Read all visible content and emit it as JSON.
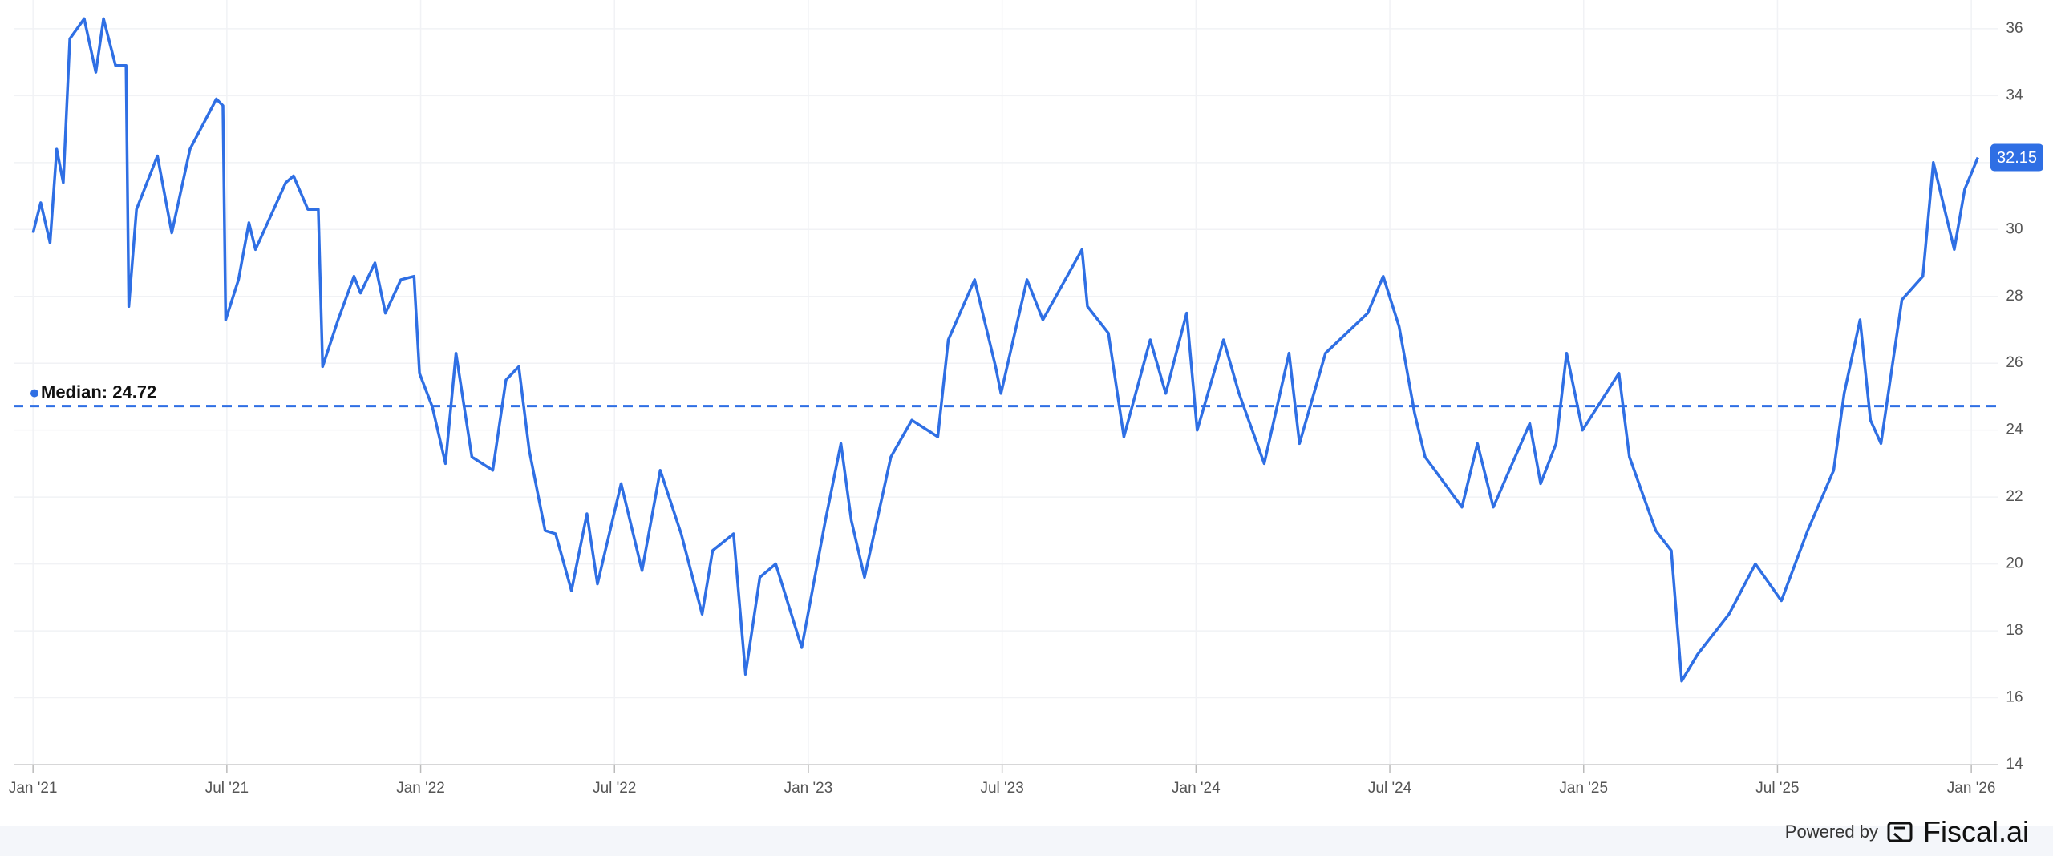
{
  "chart_data": {
    "type": "line",
    "x": [
      2021.0,
      2021.02,
      2021.044,
      2021.061,
      2021.078,
      2021.095,
      2021.132,
      2021.162,
      2021.182,
      2021.213,
      2021.24,
      2021.247,
      2021.267,
      2021.321,
      2021.358,
      2021.405,
      2021.473,
      2021.49,
      2021.497,
      2021.53,
      2021.557,
      2021.574,
      2021.652,
      2021.672,
      2021.709,
      2021.736,
      2021.747,
      2021.787,
      2021.828,
      2021.845,
      2021.882,
      2021.909,
      2021.949,
      2021.983,
      2021.997,
      2022.03,
      2022.064,
      2022.091,
      2022.132,
      2022.186,
      2022.22,
      2022.253,
      2022.28,
      2022.321,
      2022.348,
      2022.389,
      2022.429,
      2022.456,
      2022.517,
      2022.571,
      2022.618,
      2022.672,
      2022.726,
      2022.753,
      2022.807,
      2022.838,
      2022.875,
      2022.916,
      2022.983,
      2023.044,
      2023.084,
      2023.111,
      2023.145,
      2023.213,
      2023.267,
      2023.334,
      2023.361,
      2023.429,
      2023.483,
      2023.497,
      2023.564,
      2023.605,
      2023.706,
      2023.72,
      2023.774,
      2023.814,
      2023.882,
      2023.922,
      2023.976,
      2024.003,
      2024.071,
      2024.111,
      2024.176,
      2024.24,
      2024.267,
      2024.334,
      2024.443,
      2024.483,
      2024.524,
      2024.564,
      2024.591,
      2024.686,
      2024.726,
      2024.767,
      2024.861,
      2024.889,
      2024.929,
      2024.956,
      2024.997,
      2025.091,
      2025.118,
      2025.186,
      2025.226,
      2025.253,
      2025.294,
      2025.375,
      2025.443,
      2025.51,
      2025.578,
      2025.645,
      2025.672,
      2025.713,
      2025.74,
      2025.767,
      2025.821,
      2025.875,
      2025.902,
      2025.956,
      2025.983,
      2026.017
    ],
    "values": [
      29.9,
      30.8,
      29.6,
      32.4,
      31.4,
      35.7,
      36.3,
      34.7,
      36.3,
      34.9,
      34.9,
      27.7,
      30.6,
      32.2,
      29.9,
      32.4,
      33.9,
      33.7,
      27.3,
      28.5,
      30.2,
      29.4,
      31.4,
      31.6,
      30.6,
      30.6,
      25.9,
      27.3,
      28.6,
      28.1,
      29.0,
      27.5,
      28.5,
      28.6,
      25.7,
      24.7,
      23.0,
      26.3,
      23.2,
      22.8,
      25.5,
      25.9,
      23.4,
      21.0,
      20.9,
      19.2,
      21.5,
      19.4,
      22.4,
      19.8,
      22.8,
      20.9,
      18.5,
      20.4,
      20.9,
      16.7,
      19.6,
      20.0,
      17.5,
      21.3,
      23.6,
      21.3,
      19.6,
      23.2,
      24.3,
      23.8,
      26.7,
      28.5,
      25.9,
      25.1,
      28.5,
      27.3,
      29.4,
      27.7,
      26.9,
      23.8,
      26.7,
      25.1,
      27.5,
      24.0,
      26.7,
      25.1,
      23.0,
      26.3,
      23.6,
      26.3,
      27.5,
      28.6,
      27.1,
      24.5,
      23.2,
      21.7,
      23.6,
      21.7,
      24.2,
      22.4,
      23.6,
      26.3,
      24.0,
      25.7,
      23.2,
      21.0,
      20.4,
      16.5,
      17.3,
      18.5,
      20.0,
      18.9,
      21.0,
      22.8,
      25.1,
      27.3,
      24.3,
      23.6,
      27.9,
      28.6,
      32.0,
      29.4,
      31.2,
      32.15
    ],
    "color": "#2f6fe4",
    "xlim": [
      2020.95,
      2026.068
    ],
    "xticks": [
      {
        "value": 2021,
        "label": "Jan '21"
      },
      {
        "value": 2021.5,
        "label": "Jul '21"
      },
      {
        "value": 2022,
        "label": "Jan '22"
      },
      {
        "value": 2022.5,
        "label": "Jul '22"
      },
      {
        "value": 2023,
        "label": "Jan '23"
      },
      {
        "value": 2023.5,
        "label": "Jul '23"
      },
      {
        "value": 2024,
        "label": "Jan '24"
      },
      {
        "value": 2024.5,
        "label": "Jul '24"
      },
      {
        "value": 2025,
        "label": "Jan '25"
      },
      {
        "value": 2025.5,
        "label": "Jul '25"
      },
      {
        "value": 2026,
        "label": "Jan '26"
      }
    ],
    "ylim": [
      14,
      36.86
    ],
    "yticks": [
      14,
      16,
      18,
      20,
      22,
      24,
      26,
      28,
      30,
      32,
      34,
      36
    ],
    "grid": true,
    "median": {
      "value": 24.72,
      "label": "Median: 24.72"
    }
  },
  "footer": {
    "powered_by": "Powered by",
    "brand": "Fiscal.ai"
  }
}
